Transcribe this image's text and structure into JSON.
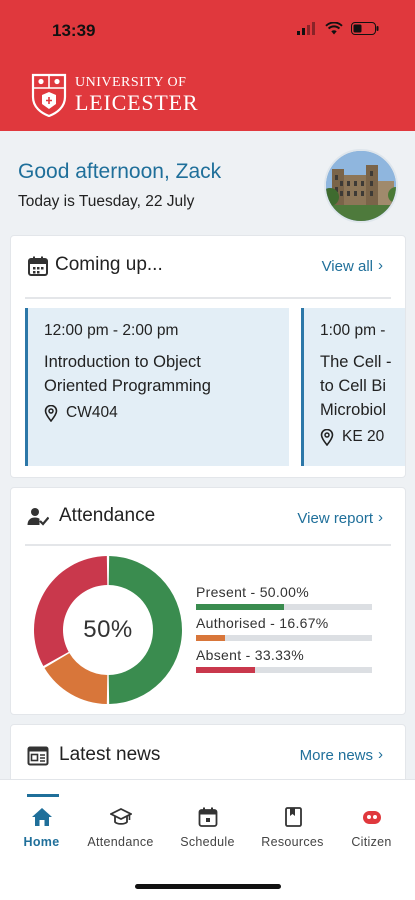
{
  "status_bar": {
    "time": "13:39"
  },
  "brand": {
    "line1": "UNIVERSITY OF",
    "line2": "LEICESTER"
  },
  "greeting": {
    "text": "Good afternoon, Zack",
    "date": "Today is Tuesday, 22 July"
  },
  "coming_up": {
    "title": "Coming up...",
    "link": "View all",
    "events": [
      {
        "time": "12:00 pm - 2:00 pm",
        "title_lines": [
          "Introduction to Object",
          "Oriented Programming"
        ],
        "location": "CW404"
      },
      {
        "time": "1:00 pm -",
        "title_lines": [
          "The Cell -",
          "to Cell Bi",
          "Microbiol"
        ],
        "location": "KE 20"
      }
    ]
  },
  "attendance": {
    "title": "Attendance",
    "link": "View report",
    "center_label": "50%",
    "items": [
      {
        "label": "Present - 50.00%",
        "value": 0.5,
        "color": "#3a8c4f"
      },
      {
        "label": "Authorised - 16.67%",
        "value": 0.1667,
        "color": "#d8763a"
      },
      {
        "label": "Absent - 33.33%",
        "value": 0.3333,
        "color": "#c9384c"
      }
    ]
  },
  "news": {
    "title": "Latest news",
    "link": "More news"
  },
  "tabs": [
    {
      "label": "Home",
      "icon": "home-icon",
      "active": true
    },
    {
      "label": "Attendance",
      "icon": "graduation-cap-icon",
      "active": false
    },
    {
      "label": "Schedule",
      "icon": "calendar-icon",
      "active": false
    },
    {
      "label": "Resources",
      "icon": "book-icon",
      "active": false
    },
    {
      "label": "Citizen",
      "icon": "citizen-icon",
      "active": false
    }
  ],
  "colors": {
    "brand_red": "#e0383d",
    "accent_blue": "#1f6f9a",
    "present": "#3a8c4f",
    "authorised": "#d8763a",
    "absent": "#c9384c"
  }
}
